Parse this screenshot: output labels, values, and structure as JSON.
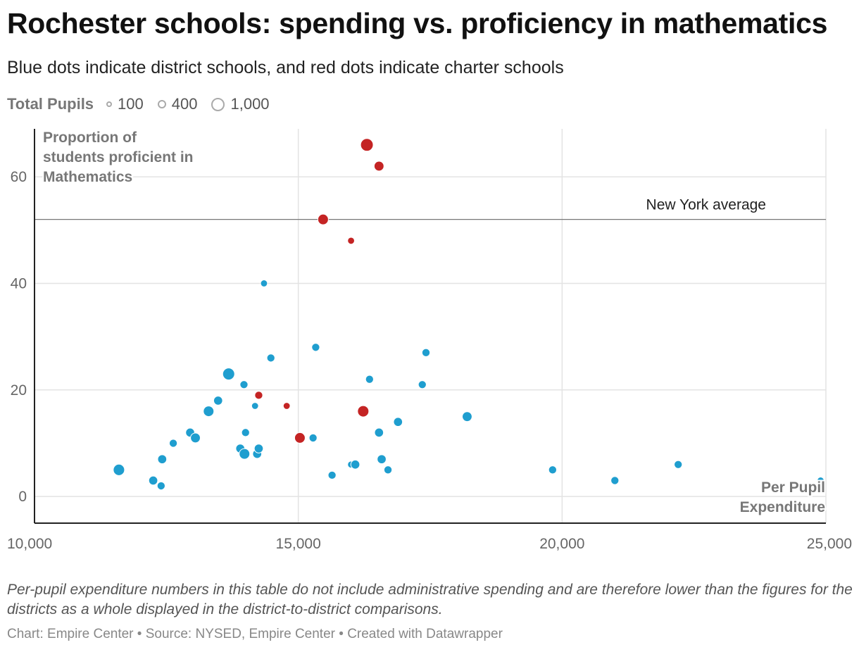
{
  "header": {
    "title": "Rochester schools: spending vs. proficiency in mathematics",
    "subtitle": "Blue dots indicate district schools, and red dots indicate charter schools"
  },
  "legend": {
    "title": "Total Pupils",
    "items": [
      {
        "label": "100",
        "pupils": 100
      },
      {
        "label": "400",
        "pupils": 400
      },
      {
        "label": "1,000",
        "pupils": 1000
      }
    ]
  },
  "colors": {
    "district": "#1f9ecf",
    "charter": "#c42424",
    "reference_line": "#777777",
    "grid": "#e3e3e3",
    "axis": "#222222"
  },
  "chart_data": {
    "type": "scatter",
    "title": "Rochester schools: spending vs. proficiency in mathematics",
    "xlabel": "Per Pupil Expenditure",
    "ylabel": "Proportion of students proficient in Mathematics",
    "xlim": [
      10000,
      25000
    ],
    "ylim": [
      -5,
      69
    ],
    "x_ticks": [
      {
        "value": 10000,
        "label": "10,000"
      },
      {
        "value": 15000,
        "label": "15,000"
      },
      {
        "value": 20000,
        "label": "20,000"
      },
      {
        "value": 25000,
        "label": "25,000"
      }
    ],
    "y_ticks": [
      {
        "value": 0,
        "label": "0"
      },
      {
        "value": 20,
        "label": "20"
      },
      {
        "value": 40,
        "label": "40"
      },
      {
        "value": 60,
        "label": "60"
      }
    ],
    "reference_line": {
      "value": 52,
      "label": "New York average"
    },
    "series": [
      {
        "name": "District schools",
        "color": "#1f9ecf",
        "points": [
          {
            "x": 11600,
            "y": 5,
            "pupils": 800
          },
          {
            "x": 12250,
            "y": 3,
            "pupils": 500
          },
          {
            "x": 12400,
            "y": 2,
            "pupils": 400
          },
          {
            "x": 12420,
            "y": 7,
            "pupils": 500
          },
          {
            "x": 12630,
            "y": 10,
            "pupils": 400
          },
          {
            "x": 12950,
            "y": 12,
            "pupils": 500
          },
          {
            "x": 13050,
            "y": 11,
            "pupils": 600
          },
          {
            "x": 13300,
            "y": 16,
            "pupils": 700
          },
          {
            "x": 13480,
            "y": 18,
            "pupils": 500
          },
          {
            "x": 13680,
            "y": 23,
            "pupils": 900
          },
          {
            "x": 13900,
            "y": 9,
            "pupils": 500
          },
          {
            "x": 13970,
            "y": 21,
            "pupils": 400
          },
          {
            "x": 13980,
            "y": 8,
            "pupils": 700
          },
          {
            "x": 14000,
            "y": 12,
            "pupils": 400
          },
          {
            "x": 14180,
            "y": 17,
            "pupils": 300
          },
          {
            "x": 14220,
            "y": 8,
            "pupils": 500
          },
          {
            "x": 14250,
            "y": 9,
            "pupils": 500
          },
          {
            "x": 14350,
            "y": 40,
            "pupils": 300
          },
          {
            "x": 14480,
            "y": 26,
            "pupils": 400
          },
          {
            "x": 15280,
            "y": 11,
            "pupils": 400
          },
          {
            "x": 15330,
            "y": 28,
            "pupils": 400
          },
          {
            "x": 15640,
            "y": 4,
            "pupils": 400
          },
          {
            "x": 16000,
            "y": 6,
            "pupils": 300
          },
          {
            "x": 16080,
            "y": 6,
            "pupils": 500
          },
          {
            "x": 16350,
            "y": 22,
            "pupils": 400
          },
          {
            "x": 16530,
            "y": 12,
            "pupils": 500
          },
          {
            "x": 16580,
            "y": 7,
            "pupils": 500
          },
          {
            "x": 16700,
            "y": 5,
            "pupils": 400
          },
          {
            "x": 16890,
            "y": 14,
            "pupils": 500
          },
          {
            "x": 17350,
            "y": 21,
            "pupils": 400
          },
          {
            "x": 17420,
            "y": 27,
            "pupils": 400
          },
          {
            "x": 18200,
            "y": 15,
            "pupils": 600
          },
          {
            "x": 19820,
            "y": 5,
            "pupils": 400
          },
          {
            "x": 21000,
            "y": 3,
            "pupils": 400
          },
          {
            "x": 22200,
            "y": 6,
            "pupils": 400
          },
          {
            "x": 24900,
            "y": 3,
            "pupils": 300
          }
        ]
      },
      {
        "name": "Charter schools",
        "color": "#c42424",
        "points": [
          {
            "x": 14250,
            "y": 19,
            "pupils": 400
          },
          {
            "x": 14780,
            "y": 17,
            "pupils": 300
          },
          {
            "x": 15030,
            "y": 11,
            "pupils": 700
          },
          {
            "x": 15470,
            "y": 52,
            "pupils": 700
          },
          {
            "x": 16000,
            "y": 48,
            "pupils": 300
          },
          {
            "x": 16230,
            "y": 16,
            "pupils": 800
          },
          {
            "x": 16300,
            "y": 66,
            "pupils": 1000
          },
          {
            "x": 16530,
            "y": 62,
            "pupils": 600
          }
        ]
      }
    ]
  },
  "notes": "Per-pupil expenditure numbers in this table do not include administrative spending and are therefore lower than the figures for the districts as a whole displayed in the district-to-district comparisons.",
  "footer": "Chart: Empire Center • Source: NYSED, Empire Center • Created with Datawrapper"
}
